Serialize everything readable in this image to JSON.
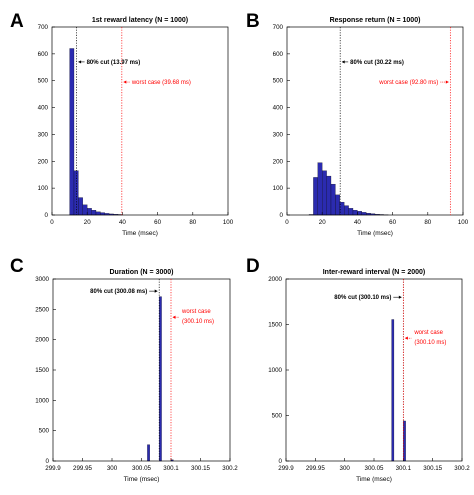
{
  "chart_data": [
    {
      "panel_label": "A",
      "type": "bar",
      "title": "1st reward latency (N = 1000)",
      "xlabel": "Time (msec)",
      "ylabel": "",
      "xlim": [
        0,
        100
      ],
      "ylim": [
        0,
        700
      ],
      "xticks": [
        0,
        20,
        40,
        60,
        80,
        100
      ],
      "yticks": [
        0,
        100,
        200,
        300,
        400,
        500,
        600,
        700
      ],
      "xtick_labels": [
        "0",
        "20",
        "40",
        "60",
        "80",
        "100"
      ],
      "ytick_labels": [
        "0",
        "100",
        "200",
        "300",
        "400",
        "500",
        "600",
        "700"
      ],
      "bin_width": 2.5,
      "bins": [
        {
          "x": 10,
          "value": 620
        },
        {
          "x": 12.5,
          "value": 165
        },
        {
          "x": 15,
          "value": 65
        },
        {
          "x": 17.5,
          "value": 38
        },
        {
          "x": 20,
          "value": 25
        },
        {
          "x": 22.5,
          "value": 18
        },
        {
          "x": 25,
          "value": 12
        },
        {
          "x": 27.5,
          "value": 9
        },
        {
          "x": 30,
          "value": 6
        },
        {
          "x": 32.5,
          "value": 4
        },
        {
          "x": 35,
          "value": 3
        },
        {
          "x": 37.5,
          "value": 2
        }
      ],
      "cut_line": {
        "x": 13.97,
        "label": "80% cut (13.97 ms)",
        "label_y": 570
      },
      "worst_line": {
        "x": 39.68,
        "label": "worst case (39.68 ms)",
        "label_y": 495
      }
    },
    {
      "panel_label": "B",
      "type": "bar",
      "title": "Response return (N = 1000)",
      "xlabel": "Time (msec)",
      "ylabel": "",
      "xlim": [
        0,
        100
      ],
      "ylim": [
        0,
        700
      ],
      "xticks": [
        0,
        20,
        40,
        60,
        80,
        100
      ],
      "yticks": [
        0,
        100,
        200,
        300,
        400,
        500,
        600,
        700
      ],
      "xtick_labels": [
        "0",
        "20",
        "40",
        "60",
        "80",
        "100"
      ],
      "ytick_labels": [
        "0",
        "100",
        "200",
        "300",
        "400",
        "500",
        "600",
        "700"
      ],
      "bin_width": 2.5,
      "bins": [
        {
          "x": 12.5,
          "value": 2
        },
        {
          "x": 15,
          "value": 140
        },
        {
          "x": 17.5,
          "value": 195
        },
        {
          "x": 20,
          "value": 165
        },
        {
          "x": 22.5,
          "value": 145
        },
        {
          "x": 25,
          "value": 115
        },
        {
          "x": 27.5,
          "value": 75
        },
        {
          "x": 30,
          "value": 48
        },
        {
          "x": 32.5,
          "value": 35
        },
        {
          "x": 35,
          "value": 25
        },
        {
          "x": 37.5,
          "value": 18
        },
        {
          "x": 40,
          "value": 14
        },
        {
          "x": 42.5,
          "value": 10
        },
        {
          "x": 45,
          "value": 7
        },
        {
          "x": 47.5,
          "value": 5
        },
        {
          "x": 50,
          "value": 3
        },
        {
          "x": 52.5,
          "value": 2
        },
        {
          "x": 55,
          "value": 1
        }
      ],
      "cut_line": {
        "x": 30.22,
        "label": "80% cut (30.22 ms)",
        "label_y": 570
      },
      "worst_line": {
        "x": 92.8,
        "label": "worst case (92.80 ms)",
        "label_y": 495
      }
    },
    {
      "panel_label": "C",
      "type": "bar",
      "title": "Duration (N = 3000)",
      "xlabel": "Time (msec)",
      "ylabel": "",
      "xlim": [
        299.9,
        300.2
      ],
      "ylim": [
        0,
        3000
      ],
      "xticks": [
        299.9,
        299.95,
        300,
        300.05,
        300.1,
        300.15,
        300.2
      ],
      "yticks": [
        0,
        500,
        1000,
        1500,
        2000,
        2500,
        3000
      ],
      "xtick_labels": [
        "299.9",
        "299.95",
        "300",
        "300.05",
        "300.1",
        "300.15",
        "300.2"
      ],
      "ytick_labels": [
        "0",
        "500",
        "1000",
        "1500",
        "2000",
        "2500",
        "3000"
      ],
      "bin_width": 0.004,
      "bins": [
        {
          "x": 300.06,
          "value": 270
        },
        {
          "x": 300.08,
          "value": 2710
        },
        {
          "x": 300.1,
          "value": 20
        }
      ],
      "cut_line": {
        "x": 300.08,
        "label": "80% cut (300.08 ms)",
        "label_y": 2800,
        "label_side": "left"
      },
      "worst_line": {
        "x": 300.1,
        "label": "worst case",
        "label2": "(300.10 ms)",
        "label_y": 2370
      }
    },
    {
      "panel_label": "D",
      "type": "bar",
      "title": "Inter-reward interval (N = 2000)",
      "xlabel": "Time (msec)",
      "ylabel": "",
      "xlim": [
        299.9,
        300.2
      ],
      "ylim": [
        0,
        2000
      ],
      "xticks": [
        299.9,
        299.95,
        300,
        300.05,
        300.1,
        300.15,
        300.2
      ],
      "yticks": [
        0,
        500,
        1000,
        1500,
        2000
      ],
      "xtick_labels": [
        "299.9",
        "299.95",
        "300",
        "300.05",
        "300.1",
        "300.15",
        "300.2"
      ],
      "ytick_labels": [
        "0",
        "500",
        "1000",
        "1500",
        "2000"
      ],
      "bin_width": 0.004,
      "bins": [
        {
          "x": 300.08,
          "value": 1555
        },
        {
          "x": 300.1,
          "value": 440
        }
      ],
      "cut_line": {
        "x": 300.1,
        "label": "80% cut (300.10 ms)",
        "label_y": 1800,
        "label_side": "left"
      },
      "worst_line": {
        "x": 300.1,
        "label": "worst case",
        "label2": "(300.10 ms)",
        "label_y": 1350
      }
    }
  ]
}
